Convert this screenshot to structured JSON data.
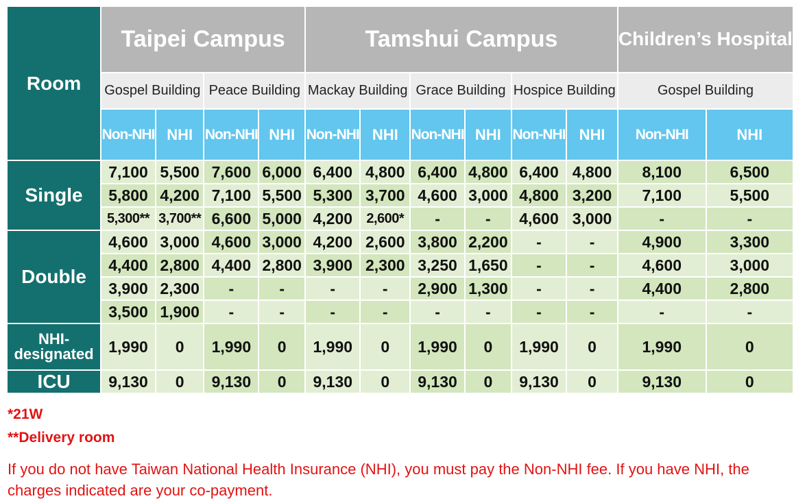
{
  "header": {
    "room_label": "Room",
    "campuses": [
      "Taipei Campus",
      "Tamshui Campus",
      "Children’s Hospital"
    ],
    "buildings": [
      "Gospel Building",
      "Peace Building",
      "Mackay Building",
      "Grace Building",
      "Hospice Building",
      "Gospel Building"
    ],
    "insurance_types": [
      "Non-NHI",
      "NHI"
    ]
  },
  "groups": [
    {
      "label": "Single",
      "rows": [
        [
          "7,100",
          "5,500",
          "7,600",
          "6,000",
          "6,400",
          "4,800",
          "6,400",
          "4,800",
          "6,400",
          "4,800",
          "8,100",
          "6,500"
        ],
        [
          "5,800",
          "4,200",
          "7,100",
          "5,500",
          "5,300",
          "3,700",
          "4,600",
          "3,000",
          "4,800",
          "3,200",
          "7,100",
          "5,500"
        ],
        [
          "5,300**",
          "3,700**",
          "6,600",
          "5,000",
          "4,200",
          "2,600*",
          "-",
          "-",
          "4,600",
          "3,000",
          "-",
          "-"
        ]
      ]
    },
    {
      "label": "Double",
      "rows": [
        [
          "4,600",
          "3,000",
          "4,600",
          "3,000",
          "4,200",
          "2,600",
          "3,800",
          "2,200",
          "-",
          "-",
          "4,900",
          "3,300"
        ],
        [
          "4,400",
          "2,800",
          "4,400",
          "2,800",
          "3,900",
          "2,300",
          "3,250",
          "1,650",
          "-",
          "-",
          "4,600",
          "3,000"
        ],
        [
          "3,900",
          "2,300",
          "-",
          "-",
          "-",
          "-",
          "2,900",
          "1,300",
          "-",
          "-",
          "4,400",
          "2,800"
        ],
        [
          "3,500",
          "1,900",
          "-",
          "-",
          "-",
          "-",
          "-",
          "-",
          "-",
          "-",
          "-",
          "-"
        ]
      ]
    },
    {
      "label": "NHI-designated",
      "rows": [
        [
          "1,990",
          "0",
          "1,990",
          "0",
          "1,990",
          "0",
          "1,990",
          "0",
          "1,990",
          "0",
          "1,990",
          "0"
        ]
      ]
    },
    {
      "label": "ICU",
      "rows": [
        [
          "9,130",
          "0",
          "9,130",
          "0",
          "9,130",
          "0",
          "9,130",
          "0",
          "9,130",
          "0",
          "9,130",
          "0"
        ]
      ]
    }
  ],
  "notes": {
    "note_1": "*21W",
    "note_2": "**Delivery room",
    "note_3": "If you do not have Taiwan National Health Insurance (NHI), you must pay the Non-NHI fee. If you have NHI, the charges indicated are your co-payment."
  },
  "colors": {
    "label_teal": "#14706e",
    "campus_grey": "#b6b6b6",
    "insurance_blue": "#62c6ee",
    "cell_green_light": "#e2eed3",
    "cell_green": "#d3e6bd",
    "note_red": "#e01313"
  }
}
